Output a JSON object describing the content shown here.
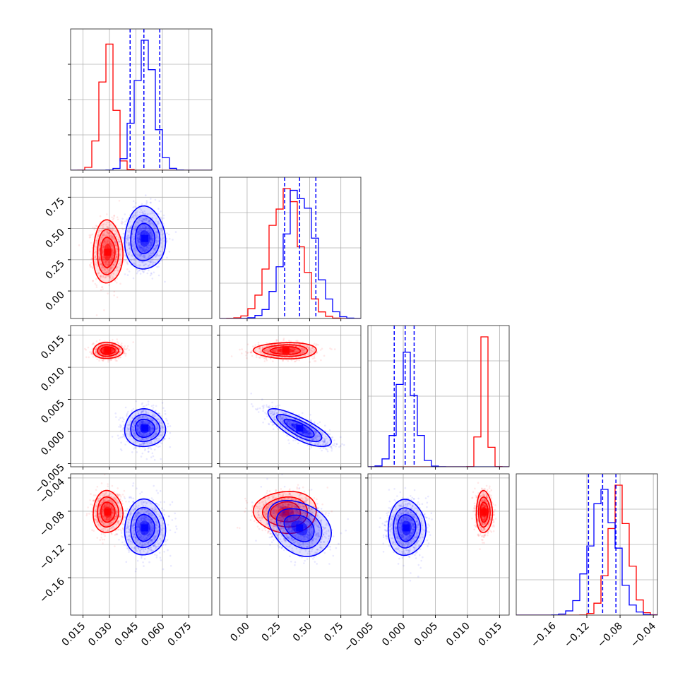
{
  "figure": {
    "kind": "corner-plot"
  },
  "chart_data": {
    "type": "corner",
    "grid": true,
    "colors": {
      "red": "#ff0000",
      "blue": "#0000ff",
      "grid": "#b0b0b0",
      "frame": "#333333"
    },
    "parameters": [
      {
        "range": [
          0.008,
          0.088
        ],
        "ticks": [
          0.015,
          0.03,
          0.045,
          0.06,
          0.075
        ],
        "tick_labels": [
          "0.015",
          "0.030",
          "0.045",
          "0.060",
          "0.075"
        ],
        "blue_quantiles": [
          0.0417,
          0.0495,
          0.0585
        ]
      },
      {
        "range": [
          -0.22,
          0.91
        ],
        "ticks": [
          0.0,
          0.25,
          0.5,
          0.75
        ],
        "tick_labels": [
          "0.00",
          "0.25",
          "0.50",
          "0.75"
        ],
        "blue_quantiles": [
          0.3,
          0.42,
          0.55
        ]
      },
      {
        "range": [
          -0.0055,
          0.0165
        ],
        "ticks": [
          -0.005,
          0.0,
          0.005,
          0.01,
          0.015
        ],
        "tick_labels": [
          "−0.005",
          "0.000",
          "0.005",
          "0.010",
          "0.015"
        ],
        "blue_quantiles": [
          -0.0014,
          0.0003,
          0.0017
        ]
      },
      {
        "range": [
          -0.205,
          -0.035
        ],
        "ticks": [
          -0.16,
          -0.12,
          -0.08,
          -0.04
        ],
        "tick_labels": [
          "−0.16",
          "−0.12",
          "−0.08",
          "−0.04"
        ],
        "blue_quantiles": [
          -0.118,
          -0.101,
          -0.085
        ]
      }
    ],
    "series": [
      {
        "color": "red",
        "mean": [
          0.029,
          0.31,
          0.0126,
          -0.081
        ],
        "sd": [
          0.004,
          0.12,
          0.0006,
          0.012
        ],
        "corr": [
          [
            1,
            0,
            0,
            0
          ],
          [
            0,
            1,
            0,
            0
          ],
          [
            0,
            0,
            1,
            0
          ],
          [
            0,
            0,
            0,
            1
          ]
        ]
      },
      {
        "color": "blue",
        "mean": [
          0.05,
          0.42,
          0.0005,
          -0.1
        ],
        "sd": [
          0.0055,
          0.12,
          0.0014,
          0.016
        ],
        "corr": [
          [
            1,
            0,
            0,
            0
          ],
          [
            0,
            1,
            -0.78,
            -0.3
          ],
          [
            0,
            -0.78,
            1,
            0
          ],
          [
            0,
            -0.3,
            0,
            1
          ]
        ]
      }
    ]
  }
}
